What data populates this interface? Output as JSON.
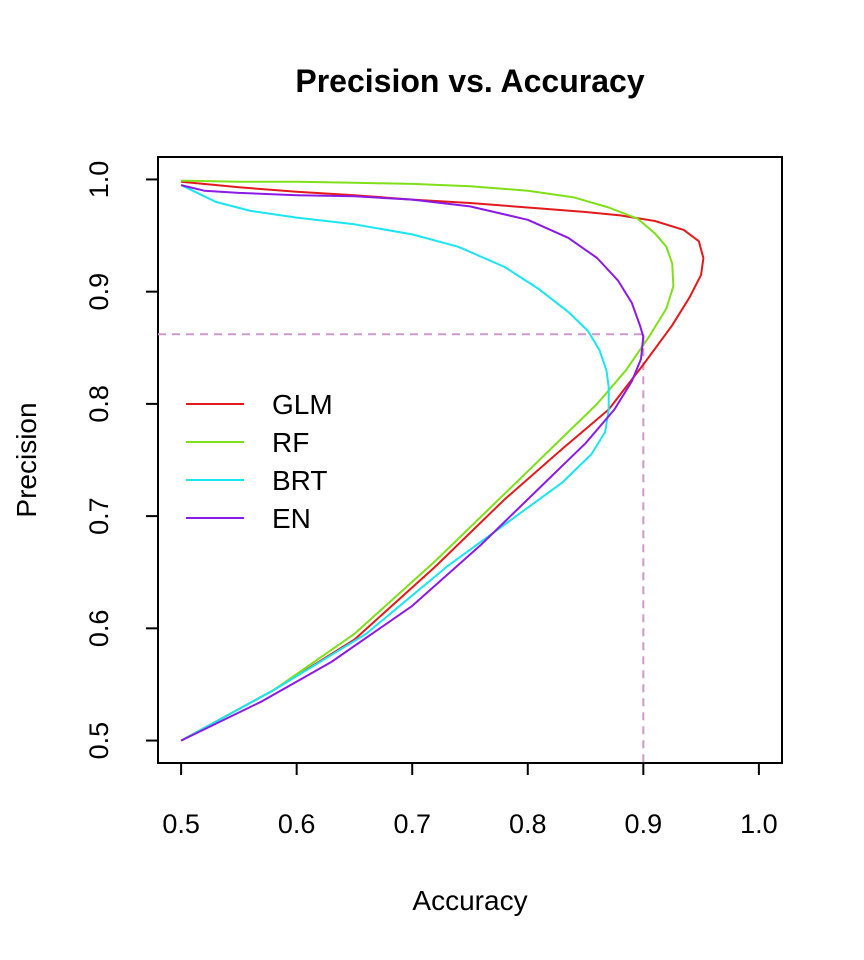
{
  "chart_data": {
    "type": "line",
    "title": "Precision vs. Accuracy",
    "xlabel": "Accuracy",
    "ylabel": "Precision",
    "xlim": [
      0.48,
      1.02
    ],
    "ylim": [
      0.48,
      1.02
    ],
    "xticks": [
      0.5,
      0.6,
      0.7,
      0.8,
      0.9,
      1.0
    ],
    "yticks": [
      0.5,
      0.6,
      0.7,
      0.8,
      0.9,
      1.0
    ],
    "xtick_labels": [
      "0.5",
      "0.6",
      "0.7",
      "0.8",
      "0.9",
      "1.0"
    ],
    "ytick_labels": [
      "0.5",
      "0.6",
      "0.7",
      "0.8",
      "0.9",
      "1.0"
    ],
    "grid": false,
    "legend_position": "left-center",
    "reference_lines": {
      "x": 0.9,
      "y": 0.862,
      "color": "#cc99cc",
      "style": "dashed"
    },
    "series": [
      {
        "name": "GLM",
        "color": "#e31a1c",
        "x": [
          0.5,
          0.55,
          0.6,
          0.65,
          0.7,
          0.75,
          0.8,
          0.85,
          0.88,
          0.91,
          0.935,
          0.948,
          0.952,
          0.95,
          0.94,
          0.925,
          0.9,
          0.87,
          0.83,
          0.78,
          0.72,
          0.65,
          0.58,
          0.5
        ],
        "y": [
          0.998,
          0.993,
          0.989,
          0.986,
          0.982,
          0.979,
          0.975,
          0.971,
          0.968,
          0.963,
          0.955,
          0.945,
          0.93,
          0.915,
          0.895,
          0.87,
          0.835,
          0.795,
          0.76,
          0.715,
          0.655,
          0.59,
          0.545,
          0.5
        ]
      },
      {
        "name": "RF",
        "color": "#7fe01a",
        "x": [
          0.5,
          0.55,
          0.6,
          0.65,
          0.7,
          0.75,
          0.8,
          0.84,
          0.87,
          0.895,
          0.91,
          0.92,
          0.925,
          0.926,
          0.92,
          0.905,
          0.885,
          0.86,
          0.83,
          0.78,
          0.72,
          0.65,
          0.58,
          0.5
        ],
        "y": [
          0.999,
          0.998,
          0.998,
          0.997,
          0.996,
          0.994,
          0.99,
          0.984,
          0.975,
          0.965,
          0.952,
          0.94,
          0.925,
          0.905,
          0.885,
          0.86,
          0.83,
          0.8,
          0.77,
          0.72,
          0.66,
          0.595,
          0.545,
          0.5
        ]
      },
      {
        "name": "BRT",
        "color": "#1ae5f0",
        "x": [
          0.5,
          0.51,
          0.53,
          0.56,
          0.6,
          0.65,
          0.7,
          0.74,
          0.78,
          0.81,
          0.835,
          0.852,
          0.862,
          0.868,
          0.87,
          0.87,
          0.867,
          0.855,
          0.83,
          0.79,
          0.73,
          0.66,
          0.58,
          0.5
        ],
        "y": [
          0.995,
          0.99,
          0.98,
          0.972,
          0.966,
          0.96,
          0.951,
          0.94,
          0.922,
          0.902,
          0.882,
          0.865,
          0.848,
          0.83,
          0.815,
          0.795,
          0.775,
          0.755,
          0.73,
          0.7,
          0.655,
          0.595,
          0.545,
          0.5
        ]
      },
      {
        "name": "EN",
        "color": "#8c1ae6",
        "x": [
          0.5,
          0.52,
          0.55,
          0.6,
          0.65,
          0.7,
          0.75,
          0.8,
          0.835,
          0.86,
          0.878,
          0.89,
          0.897,
          0.9,
          0.898,
          0.89,
          0.875,
          0.85,
          0.81,
          0.76,
          0.7,
          0.63,
          0.57,
          0.5
        ],
        "y": [
          0.995,
          0.99,
          0.988,
          0.986,
          0.985,
          0.982,
          0.976,
          0.964,
          0.948,
          0.93,
          0.91,
          0.89,
          0.87,
          0.86,
          0.84,
          0.82,
          0.795,
          0.765,
          0.725,
          0.675,
          0.62,
          0.57,
          0.535,
          0.5
        ]
      }
    ]
  }
}
